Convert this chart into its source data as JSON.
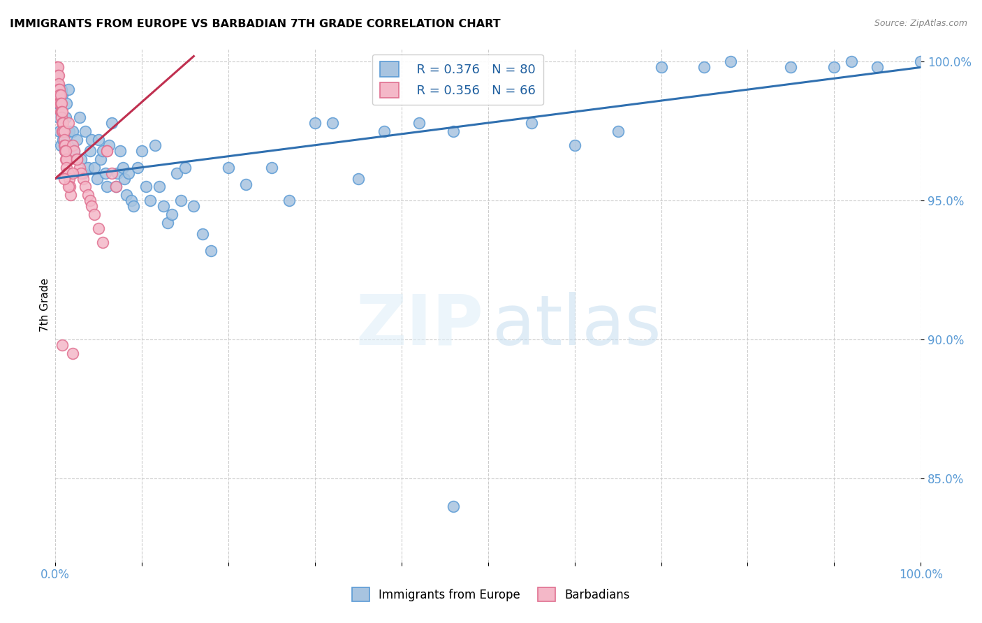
{
  "title": "IMMIGRANTS FROM EUROPE VS BARBADIAN 7TH GRADE CORRELATION CHART",
  "source": "Source: ZipAtlas.com",
  "ylabel": "7th Grade",
  "xlim": [
    0.0,
    1.0
  ],
  "ylim": [
    0.82,
    1.005
  ],
  "yticks": [
    0.85,
    0.9,
    0.95,
    1.0
  ],
  "ytick_labels": [
    "85.0%",
    "90.0%",
    "95.0%",
    "100.0%"
  ],
  "xticks": [
    0.0,
    0.1,
    0.2,
    0.3,
    0.4,
    0.5,
    0.6,
    0.7,
    0.8,
    0.9,
    1.0
  ],
  "blue_color": "#a8c4e0",
  "blue_edge": "#5b9bd5",
  "pink_color": "#f4b8c8",
  "pink_edge": "#e07090",
  "trendline_blue": "#3070b0",
  "trendline_pink": "#c03050",
  "legend_R_blue": "0.376",
  "legend_N_blue": "80",
  "legend_R_pink": "0.356",
  "legend_N_pink": "66",
  "blue_trendline_x": [
    0.0,
    1.0
  ],
  "blue_trendline_y": [
    0.958,
    0.998
  ],
  "pink_trendline_x": [
    0.0,
    0.16
  ],
  "pink_trendline_y": [
    0.958,
    1.002
  ],
  "blue_x": [
    0.002,
    0.003,
    0.004,
    0.005,
    0.006,
    0.007,
    0.008,
    0.009,
    0.01,
    0.011,
    0.012,
    0.013,
    0.015,
    0.016,
    0.018,
    0.02,
    0.022,
    0.025,
    0.028,
    0.03,
    0.032,
    0.035,
    0.038,
    0.04,
    0.042,
    0.045,
    0.048,
    0.05,
    0.052,
    0.055,
    0.058,
    0.06,
    0.062,
    0.065,
    0.07,
    0.072,
    0.075,
    0.078,
    0.08,
    0.082,
    0.085,
    0.088,
    0.09,
    0.095,
    0.1,
    0.105,
    0.11,
    0.115,
    0.12,
    0.125,
    0.13,
    0.135,
    0.14,
    0.145,
    0.15,
    0.16,
    0.17,
    0.18,
    0.2,
    0.22,
    0.25,
    0.27,
    0.3,
    0.32,
    0.38,
    0.42,
    0.46,
    0.55,
    0.6,
    0.65,
    0.7,
    0.75,
    0.78,
    0.85,
    0.9,
    0.92,
    0.95,
    1.0,
    0.46,
    0.35
  ],
  "blue_y": [
    0.99,
    0.985,
    0.98,
    0.975,
    0.97,
    0.99,
    0.988,
    0.972,
    0.975,
    0.968,
    0.98,
    0.985,
    0.99,
    0.975,
    0.97,
    0.975,
    0.968,
    0.972,
    0.98,
    0.965,
    0.96,
    0.975,
    0.962,
    0.968,
    0.972,
    0.962,
    0.958,
    0.972,
    0.965,
    0.968,
    0.96,
    0.955,
    0.97,
    0.978,
    0.955,
    0.96,
    0.968,
    0.962,
    0.958,
    0.952,
    0.96,
    0.95,
    0.948,
    0.962,
    0.968,
    0.955,
    0.95,
    0.97,
    0.955,
    0.948,
    0.942,
    0.945,
    0.96,
    0.95,
    0.962,
    0.948,
    0.938,
    0.932,
    0.962,
    0.956,
    0.962,
    0.95,
    0.978,
    0.978,
    0.975,
    0.978,
    0.975,
    0.978,
    0.97,
    0.975,
    0.998,
    0.998,
    1.0,
    0.998,
    0.998,
    1.0,
    0.998,
    1.0,
    0.84,
    0.958
  ],
  "pink_x": [
    0.001,
    0.001,
    0.002,
    0.002,
    0.002,
    0.003,
    0.003,
    0.003,
    0.003,
    0.004,
    0.004,
    0.004,
    0.004,
    0.005,
    0.005,
    0.005,
    0.006,
    0.006,
    0.006,
    0.007,
    0.007,
    0.007,
    0.008,
    0.008,
    0.008,
    0.009,
    0.009,
    0.01,
    0.01,
    0.01,
    0.011,
    0.011,
    0.012,
    0.012,
    0.013,
    0.013,
    0.014,
    0.015,
    0.016,
    0.017,
    0.018,
    0.02,
    0.022,
    0.025,
    0.028,
    0.03,
    0.032,
    0.035,
    0.038,
    0.04,
    0.042,
    0.045,
    0.05,
    0.055,
    0.06,
    0.065,
    0.07,
    0.02,
    0.025,
    0.015,
    0.008,
    0.01,
    0.012,
    0.015,
    0.02,
    0.06
  ],
  "pink_y": [
    0.998,
    0.995,
    0.998,
    0.995,
    0.992,
    0.998,
    0.995,
    0.992,
    0.99,
    0.995,
    0.992,
    0.99,
    0.988,
    0.99,
    0.988,
    0.985,
    0.988,
    0.985,
    0.982,
    0.985,
    0.982,
    0.98,
    0.982,
    0.978,
    0.975,
    0.978,
    0.975,
    0.975,
    0.972,
    0.97,
    0.97,
    0.968,
    0.968,
    0.965,
    0.965,
    0.962,
    0.96,
    0.96,
    0.958,
    0.955,
    0.952,
    0.97,
    0.968,
    0.965,
    0.962,
    0.96,
    0.958,
    0.955,
    0.952,
    0.95,
    0.948,
    0.945,
    0.94,
    0.935,
    0.968,
    0.96,
    0.955,
    0.96,
    0.965,
    0.955,
    0.898,
    0.958,
    0.968,
    0.978,
    0.895,
    0.968
  ]
}
